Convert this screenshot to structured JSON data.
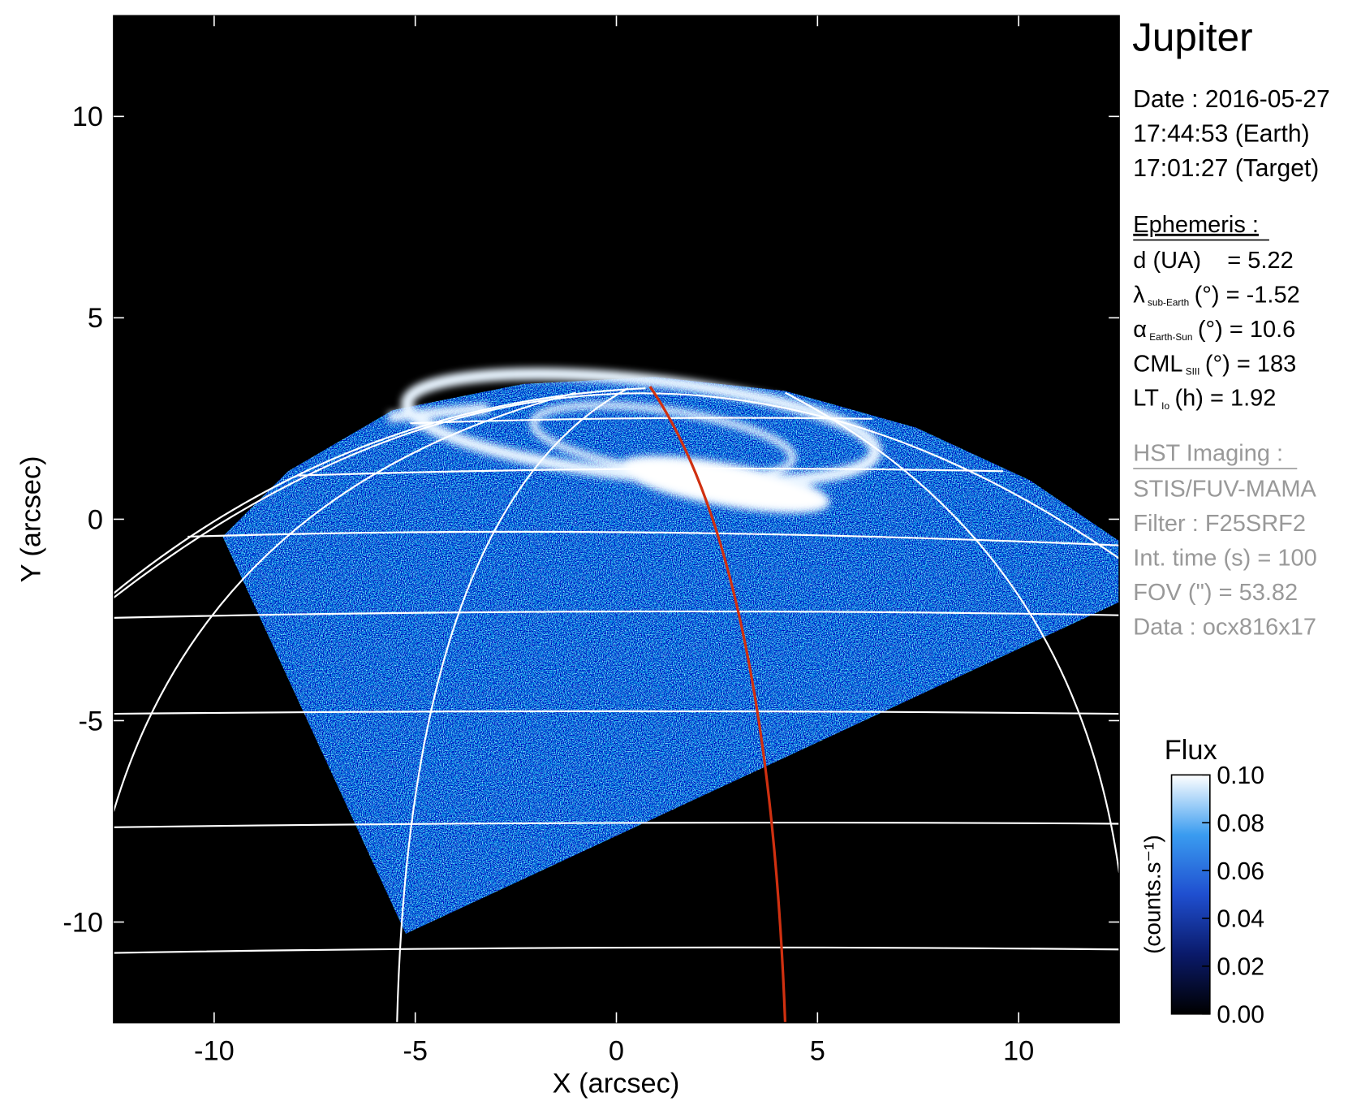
{
  "chart_data": {
    "type": "image",
    "xlabel": "X (arcsec)",
    "ylabel": "Y (arcsec)",
    "xlim": [
      -12.5,
      12.5
    ],
    "ylim": [
      -12.5,
      12.5
    ],
    "xticks": [
      -10,
      -5,
      0,
      5,
      10
    ],
    "yticks": [
      -10,
      -5,
      0,
      5,
      10
    ],
    "colorbar": {
      "label": "Flux",
      "unit": "(counts.s⁻¹)",
      "lim": [
        0,
        0.1
      ],
      "ticks": [
        {
          "value": 0,
          "label": "0.00"
        },
        {
          "value": 0.02,
          "label": "0.02"
        },
        {
          "value": 0.04,
          "label": "0.04"
        },
        {
          "value": 0.06,
          "label": "0.06"
        },
        {
          "value": 0.08,
          "label": "0.08"
        },
        {
          "value": 0.1,
          "label": "0.10"
        }
      ],
      "colors": [
        "#000000",
        "#0a1a6a",
        "#1f4fd0",
        "#3a9cf0",
        "#ffffff"
      ]
    }
  },
  "panel": {
    "title": "Jupiter",
    "date": [
      "Date : 2016-05-27",
      "17:44:53 (Earth)",
      "17:01:27 (Target)"
    ],
    "ephemeris_heading": "Ephemeris :",
    "ephemeris": [
      {
        "main": "d (UA)    = 5.22"
      },
      {
        "main": "λ",
        "sub": "sub-Earth",
        "rest": "(°) = -1.52"
      },
      {
        "main": "α",
        "sub": "Earth-Sun",
        "rest": "(°) = 10.6"
      },
      {
        "main": "CML",
        "sub": "SIII",
        "rest": "(°) = 183"
      },
      {
        "main": "LT",
        "sub": "Io",
        "rest": "(h) = 1.92"
      }
    ],
    "hst_heading": "HST Imaging :",
    "hst": [
      "STIS/FUV-MAMA",
      "Filter : F25SRF2",
      "Int. time (s) = 100",
      "FOV (\") = 53.82",
      "Data : ocx816x17"
    ]
  }
}
